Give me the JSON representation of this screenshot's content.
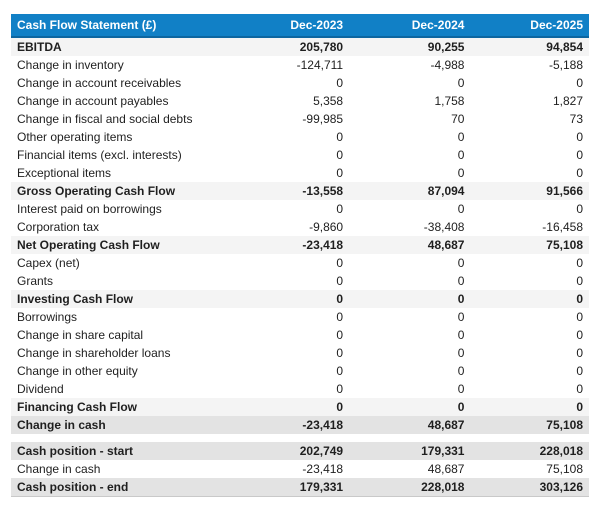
{
  "colors": {
    "header_bg": "#1180c6",
    "header_border": "#0d66a0",
    "subtotal_bg": "#f4f4f4",
    "total_bg": "#e3e3e3"
  },
  "table": {
    "title": "Cash Flow Statement (£)",
    "columns": [
      "Dec-2023",
      "Dec-2024",
      "Dec-2025"
    ],
    "main_rows": [
      {
        "label": "EBITDA",
        "values": [
          "205,780",
          "90,255",
          "94,854"
        ],
        "emphasis": "subtotal"
      },
      {
        "label": "Change in inventory",
        "values": [
          "-124,711",
          "-4,988",
          "-5,188"
        ],
        "emphasis": "normal"
      },
      {
        "label": "Change in account receivables",
        "values": [
          "0",
          "0",
          "0"
        ],
        "emphasis": "normal"
      },
      {
        "label": "Change in account payables",
        "values": [
          "5,358",
          "1,758",
          "1,827"
        ],
        "emphasis": "normal"
      },
      {
        "label": "Change in fiscal and social debts",
        "values": [
          "-99,985",
          "70",
          "73"
        ],
        "emphasis": "normal"
      },
      {
        "label": "Other operating items",
        "values": [
          "0",
          "0",
          "0"
        ],
        "emphasis": "normal"
      },
      {
        "label": "Financial items (excl. interests)",
        "values": [
          "0",
          "0",
          "0"
        ],
        "emphasis": "normal"
      },
      {
        "label": "Exceptional items",
        "values": [
          "0",
          "0",
          "0"
        ],
        "emphasis": "normal"
      },
      {
        "label": "Gross Operating Cash Flow",
        "values": [
          "-13,558",
          "87,094",
          "91,566"
        ],
        "emphasis": "subtotal"
      },
      {
        "label": "Interest paid on borrowings",
        "values": [
          "0",
          "0",
          "0"
        ],
        "emphasis": "normal"
      },
      {
        "label": "Corporation tax",
        "values": [
          "-9,860",
          "-38,408",
          "-16,458"
        ],
        "emphasis": "normal"
      },
      {
        "label": "Net Operating Cash Flow",
        "values": [
          "-23,418",
          "48,687",
          "75,108"
        ],
        "emphasis": "subtotal"
      },
      {
        "label": "Capex (net)",
        "values": [
          "0",
          "0",
          "0"
        ],
        "emphasis": "normal"
      },
      {
        "label": "Grants",
        "values": [
          "0",
          "0",
          "0"
        ],
        "emphasis": "normal"
      },
      {
        "label": "Investing Cash Flow",
        "values": [
          "0",
          "0",
          "0"
        ],
        "emphasis": "subtotal"
      },
      {
        "label": "Borrowings",
        "values": [
          "0",
          "0",
          "0"
        ],
        "emphasis": "normal"
      },
      {
        "label": "Change in share capital",
        "values": [
          "0",
          "0",
          "0"
        ],
        "emphasis": "normal"
      },
      {
        "label": "Change in shareholder loans",
        "values": [
          "0",
          "0",
          "0"
        ],
        "emphasis": "normal"
      },
      {
        "label": "Change in other equity",
        "values": [
          "0",
          "0",
          "0"
        ],
        "emphasis": "normal"
      },
      {
        "label": "Dividend",
        "values": [
          "0",
          "0",
          "0"
        ],
        "emphasis": "normal"
      },
      {
        "label": "Financing Cash Flow",
        "values": [
          "0",
          "0",
          "0"
        ],
        "emphasis": "subtotal"
      },
      {
        "label": "Change in cash",
        "values": [
          "-23,418",
          "48,687",
          "75,108"
        ],
        "emphasis": "total"
      }
    ],
    "cash_position_rows": [
      {
        "label": "Cash position - start",
        "values": [
          "202,749",
          "179,331",
          "228,018"
        ],
        "emphasis": "total"
      },
      {
        "label": "Change in cash",
        "values": [
          "-23,418",
          "48,687",
          "75,108"
        ],
        "emphasis": "normal"
      },
      {
        "label": "Cash position - end",
        "values": [
          "179,331",
          "228,018",
          "303,126"
        ],
        "emphasis": "total"
      }
    ]
  }
}
